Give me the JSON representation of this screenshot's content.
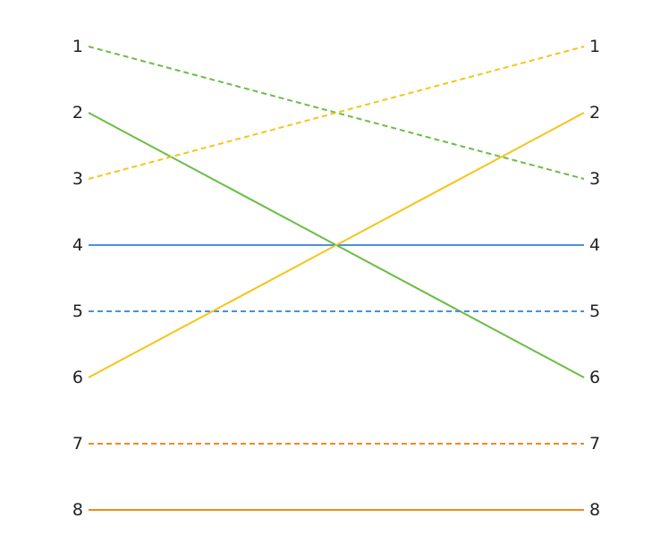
{
  "chart_data": {
    "type": "line",
    "left_labels": [
      "1",
      "2",
      "3",
      "4",
      "5",
      "6",
      "7",
      "8"
    ],
    "right_labels": [
      "1",
      "2",
      "3",
      "4",
      "5",
      "6",
      "7",
      "8"
    ],
    "series": [
      {
        "from": 1,
        "to": 3,
        "color": "#6abd45",
        "dashed": true
      },
      {
        "from": 2,
        "to": 6,
        "color": "#6abd45",
        "dashed": false
      },
      {
        "from": 3,
        "to": 1,
        "color": "#f5c518",
        "dashed": true
      },
      {
        "from": 4,
        "to": 4,
        "color": "#4a90d9",
        "dashed": false
      },
      {
        "from": 5,
        "to": 5,
        "color": "#4a90d9",
        "dashed": true
      },
      {
        "from": 6,
        "to": 2,
        "color": "#f5c518",
        "dashed": false
      },
      {
        "from": 7,
        "to": 7,
        "color": "#f08a1c",
        "dashed": true
      },
      {
        "from": 8,
        "to": 8,
        "color": "#f08a1c",
        "dashed": false
      }
    ],
    "grid": false,
    "legend": "none"
  }
}
